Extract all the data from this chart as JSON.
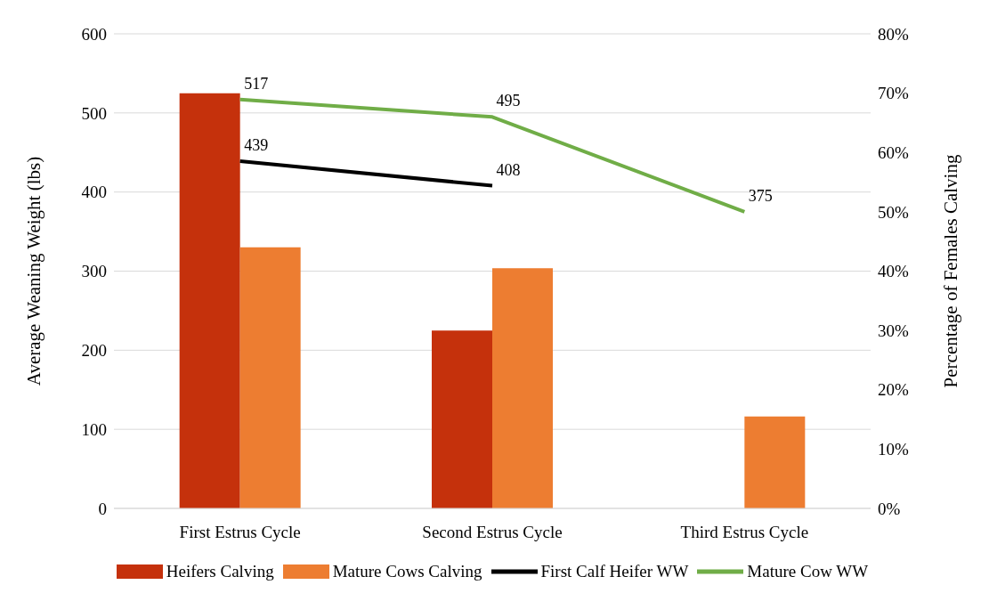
{
  "chart_data": {
    "type": "bar",
    "categories": [
      "First Estrus Cycle",
      "Second Estrus Cycle",
      "Third Estrus Cycle"
    ],
    "ylabel": "Average Weaning Weight (lbs)",
    "y2label": "Percentage of Females Calving",
    "ylim": [
      0,
      600
    ],
    "yticks": [
      0,
      100,
      200,
      300,
      400,
      500,
      600
    ],
    "y2lim": [
      0,
      80
    ],
    "y2ticks": [
      {
        "value": 0,
        "label": "0%"
      },
      {
        "value": 10,
        "label": "10%"
      },
      {
        "value": 20,
        "label": "20%"
      },
      {
        "value": 30,
        "label": "30%"
      },
      {
        "value": 40,
        "label": "40%"
      },
      {
        "value": 50,
        "label": "50%"
      },
      {
        "value": 60,
        "label": "60%"
      },
      {
        "value": 70,
        "label": "70%"
      },
      {
        "value": 80,
        "label": "80%"
      }
    ],
    "grid": "y",
    "legend": "bottom",
    "series": [
      {
        "name": "Heifers Calving",
        "axis": "y2",
        "color": "#c5310c",
        "values": [
          70,
          30,
          null
        ]
      },
      {
        "name": "Mature Cows Calving",
        "axis": "y2",
        "color": "#ed7d31",
        "values": [
          44,
          40.5,
          15.5
        ]
      },
      {
        "name": "First Calf Heifer WW",
        "type": "line",
        "color": "#000000",
        "values": [
          439,
          408,
          null
        ],
        "value_labels": [
          "439",
          "408",
          null
        ]
      },
      {
        "name": "Mature Cow WW",
        "type": "line",
        "color": "#70ad47",
        "values": [
          517,
          495,
          375
        ],
        "value_labels": [
          "517",
          "495",
          "375"
        ]
      }
    ]
  }
}
